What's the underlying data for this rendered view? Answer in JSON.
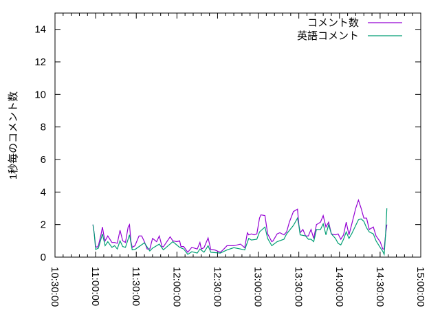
{
  "chart_data": {
    "type": "line",
    "title": "",
    "xlabel": "",
    "ylabel": "1秒毎のコメント数",
    "xlim": [
      "10:30:00",
      "15:00:00"
    ],
    "ylim": [
      0,
      15
    ],
    "x_ticks": [
      "10:30:00",
      "11:00:00",
      "11:30:00",
      "12:00:00",
      "12:30:00",
      "13:00:00",
      "13:30:00",
      "14:00:00",
      "14:30:00",
      "15:00:00"
    ],
    "y_ticks": [
      0,
      2,
      4,
      6,
      8,
      10,
      12,
      14
    ],
    "grid": false,
    "legend_position": "top-right",
    "series": [
      {
        "name": "コメント数",
        "color": "#9400d3",
        "x": [
          "10:58",
          "10:59",
          "11:00",
          "11:01",
          "11:02",
          "11:04",
          "11:05",
          "11:06",
          "11:07",
          "11:09",
          "11:12",
          "11:14",
          "11:16",
          "11:18",
          "11:20",
          "11:22",
          "11:24",
          "11:25",
          "11:26",
          "11:27",
          "11:29",
          "11:32",
          "11:34",
          "11:36",
          "11:38",
          "11:40",
          "11:42",
          "11:45",
          "11:47",
          "11:49",
          "11:50",
          "11:55",
          "11:57",
          "12:00",
          "12:02",
          "12:03",
          "12:05",
          "12:08",
          "12:11",
          "12:15",
          "12:17",
          "12:18",
          "12:20",
          "12:23",
          "12:25",
          "12:28",
          "12:32",
          "12:34",
          "12:37",
          "12:42",
          "12:47",
          "12:50",
          "12:52",
          "12:53",
          "12:55",
          "12:57",
          "12:59",
          "13:01",
          "13:02",
          "13:05",
          "13:07",
          "13:10",
          "13:11",
          "13:14",
          "13:16",
          "13:19",
          "13:21",
          "13:23",
          "13:26",
          "13:29",
          "13:30",
          "13:31",
          "13:33",
          "13:35",
          "13:37",
          "13:39",
          "13:41",
          "13:43",
          "13:46",
          "13:48",
          "13:50",
          "13:52",
          "13:54",
          "13:57",
          "13:59",
          "14:01",
          "14:03",
          "14:05",
          "14:07",
          "14:09",
          "14:12",
          "14:14",
          "14:16",
          "14:18",
          "14:20",
          "14:22",
          "14:25",
          "14:27",
          "14:30",
          "14:32",
          "14:33",
          "14:34",
          "14:35"
        ],
        "y": [
          2.0,
          1.43,
          0.67,
          0.6,
          0.7,
          1.4,
          1.85,
          1.37,
          1.0,
          1.3,
          0.9,
          0.9,
          0.85,
          1.65,
          1.0,
          0.9,
          1.85,
          2.0,
          1.0,
          0.6,
          0.7,
          1.3,
          1.3,
          0.95,
          0.5,
          0.5,
          1.15,
          0.95,
          1.3,
          0.65,
          0.63,
          1.25,
          1.0,
          0.95,
          1.0,
          0.65,
          0.65,
          0.3,
          0.6,
          0.5,
          0.9,
          0.5,
          0.58,
          1.18,
          0.47,
          0.44,
          0.3,
          0.44,
          0.7,
          0.7,
          0.8,
          0.58,
          1.5,
          1.37,
          1.43,
          1.37,
          1.43,
          2.4,
          2.6,
          2.55,
          1.43,
          0.95,
          1.0,
          1.43,
          1.5,
          1.37,
          1.55,
          2.15,
          2.8,
          2.95,
          2.0,
          1.5,
          1.7,
          1.3,
          1.3,
          1.7,
          1.15,
          2.0,
          2.15,
          2.55,
          1.85,
          2.15,
          1.43,
          1.37,
          1.43,
          1.1,
          1.37,
          2.15,
          1.37,
          2.0,
          3.0,
          3.5,
          3.0,
          2.4,
          2.4,
          1.7,
          1.85,
          1.3,
          0.95,
          0.5,
          0.5,
          1.37,
          2.0
        ]
      },
      {
        "name": "英語コメント",
        "color": "#009e73",
        "x": [
          "10:58",
          "10:59",
          "11:00",
          "11:02",
          "11:05",
          "11:07",
          "11:09",
          "11:12",
          "11:14",
          "11:16",
          "11:18",
          "11:20",
          "11:22",
          "11:25",
          "11:27",
          "11:29",
          "11:36",
          "11:40",
          "11:42",
          "11:47",
          "11:50",
          "11:57",
          "12:02",
          "12:05",
          "12:08",
          "12:11",
          "12:15",
          "12:17",
          "12:20",
          "12:23",
          "12:25",
          "12:32",
          "12:37",
          "12:42",
          "12:47",
          "12:50",
          "12:53",
          "12:55",
          "12:59",
          "13:01",
          "13:05",
          "13:07",
          "13:10",
          "13:14",
          "13:19",
          "13:21",
          "13:26",
          "13:29",
          "13:30",
          "13:31",
          "13:35",
          "13:37",
          "13:39",
          "13:41",
          "13:43",
          "13:46",
          "13:48",
          "13:50",
          "13:52",
          "13:54",
          "13:57",
          "13:59",
          "14:01",
          "14:03",
          "14:05",
          "14:07",
          "14:09",
          "14:12",
          "14:14",
          "14:16",
          "14:18",
          "14:20",
          "14:22",
          "14:25",
          "14:27",
          "14:30",
          "14:32",
          "14:33",
          "14:34",
          "14:35"
        ],
        "y": [
          2.0,
          1.43,
          0.47,
          0.55,
          1.43,
          0.7,
          0.95,
          0.6,
          0.7,
          0.5,
          1.0,
          0.65,
          0.6,
          1.37,
          0.45,
          0.47,
          0.88,
          0.38,
          0.55,
          0.8,
          0.45,
          0.95,
          0.6,
          0.5,
          0.17,
          0.33,
          0.25,
          0.5,
          0.3,
          0.7,
          0.3,
          0.25,
          0.44,
          0.58,
          0.5,
          0.44,
          1.15,
          1.05,
          1.1,
          1.55,
          1.85,
          1.15,
          0.7,
          0.95,
          1.1,
          1.43,
          1.95,
          2.4,
          1.95,
          1.37,
          1.3,
          1.1,
          1.1,
          0.95,
          1.7,
          1.7,
          2.05,
          1.37,
          2.0,
          1.43,
          1.15,
          0.85,
          0.75,
          1.1,
          1.55,
          1.15,
          1.43,
          1.95,
          2.3,
          2.35,
          2.2,
          1.8,
          1.55,
          1.43,
          1.0,
          0.6,
          0.35,
          0.17,
          1.37,
          3.0
        ]
      }
    ]
  }
}
